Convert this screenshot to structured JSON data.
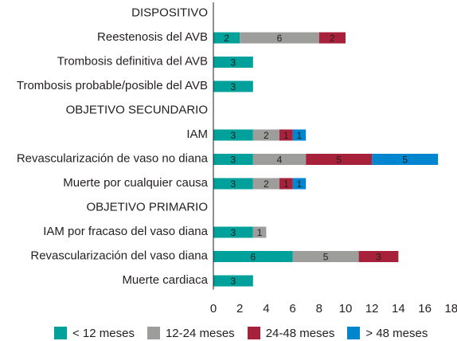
{
  "chart_data": {
    "type": "bar",
    "orientation": "horizontal",
    "stacked": true,
    "categories": [
      "DISPOSITIVO",
      "Reestenosis del AVB",
      "Trombosis definitiva del AVB",
      "Trombosis probable/posible del AVB",
      "OBJETIVO SECUNDARIO",
      "IAM",
      "Revascularización de vaso no diana",
      "Muerte por cualquier causa",
      "OBJETIVO PRIMARIO",
      "IAM por fracaso del vaso diana",
      "Revascularización del vaso diana",
      "Muerte cardiaca"
    ],
    "series": [
      {
        "name": "< 12 meses",
        "color": "#00a19a",
        "values": [
          null,
          2,
          3,
          3,
          null,
          3,
          3,
          3,
          null,
          3,
          6,
          3
        ]
      },
      {
        "name": "12-24 meses",
        "color": "#9d9d9c",
        "values": [
          null,
          6,
          null,
          null,
          null,
          2,
          4,
          2,
          null,
          1,
          5,
          null
        ]
      },
      {
        "name": "24-48 meses",
        "color": "#a8213b",
        "values": [
          null,
          2,
          null,
          null,
          null,
          1,
          5,
          1,
          null,
          null,
          3,
          null
        ]
      },
      {
        "name": "> 48 meses",
        "color": "#0086cf",
        "values": [
          null,
          null,
          null,
          null,
          null,
          1,
          5,
          1,
          null,
          null,
          null,
          null
        ]
      }
    ],
    "xlim": [
      0,
      18
    ],
    "xticks": [
      "0",
      "2",
      "4",
      "6",
      "8",
      "10",
      "12",
      "14",
      "16",
      "18"
    ],
    "xlabel": "",
    "ylabel": "",
    "grid": false,
    "legend_position": "bottom"
  }
}
